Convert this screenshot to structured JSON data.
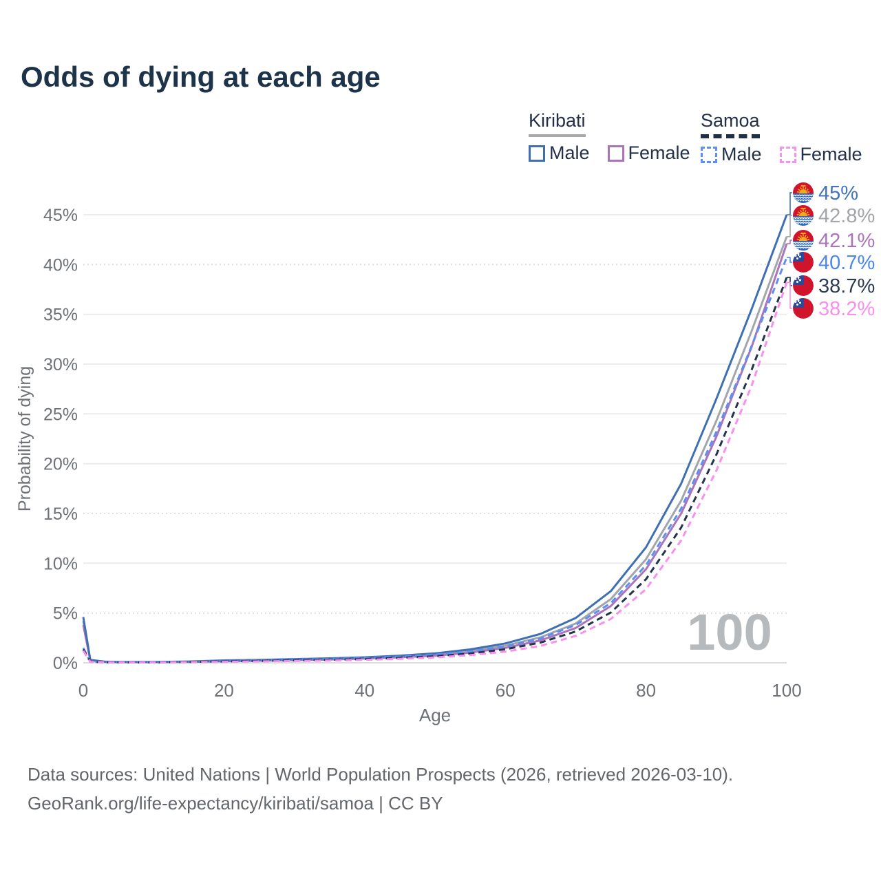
{
  "header": {
    "title": "Odds of dying at each age"
  },
  "legend": {
    "groups": [
      {
        "label": "Kiribati",
        "line_style": "solid",
        "underline_color": "#a9a9a9",
        "items": [
          {
            "label": "Male",
            "color": "#3f6fb3"
          },
          {
            "label": "Female",
            "color": "#ab74ba"
          }
        ]
      },
      {
        "label": "Samoa",
        "line_style": "dashed",
        "underline_color": "#1e2f47",
        "items": [
          {
            "label": "Male",
            "color": "#5b8ff2"
          },
          {
            "label": "Female",
            "color": "#f98fee"
          }
        ]
      }
    ]
  },
  "watermark": "100",
  "footer": {
    "line1": "Data sources: United Nations | World Population Prospects (2026, retrieved 2026-03-10).",
    "line2": "GeoRank.org/life-expectancy/kiribati/samoa | CC BY"
  },
  "chart_data": {
    "type": "line",
    "title": "Odds of dying at each age",
    "xlabel": "Age",
    "ylabel": "Probability of dying",
    "xlim": [
      0,
      100
    ],
    "ylim": [
      0,
      45
    ],
    "xticks": [
      0,
      20,
      40,
      60,
      80,
      100
    ],
    "yticks": [
      0,
      5,
      10,
      15,
      20,
      25,
      30,
      35,
      40,
      45
    ],
    "ytick_suffix": "%",
    "dotted_gridlines": [
      5,
      15,
      40
    ],
    "grid": true,
    "legend_position": "top-right",
    "axis_color": "#6e7276",
    "grid_color": "#ececec",
    "baseline_color": "#dcdcdc",
    "watermark_color": "#b7babd",
    "flag_colors": {
      "red": "#d0142c",
      "blue": "#2f66c4",
      "canton_blue": "#2a4b9b",
      "gold": "#f6a81c",
      "white": "#ffffff"
    },
    "series": [
      {
        "id": "kiribati-male",
        "name": "Kiribati Male",
        "country": "Kiribati",
        "sex": "Male",
        "line_style": "solid",
        "color": "#3f6fb3",
        "label_color": "#4273b8",
        "flag": "kiribati",
        "end_label": "45%",
        "end_value": 45,
        "points": [
          [
            0,
            4.6
          ],
          [
            1,
            0.3
          ],
          [
            3,
            0.12
          ],
          [
            5,
            0.09
          ],
          [
            10,
            0.08
          ],
          [
            15,
            0.13
          ],
          [
            20,
            0.24
          ],
          [
            25,
            0.3
          ],
          [
            30,
            0.37
          ],
          [
            35,
            0.45
          ],
          [
            40,
            0.55
          ],
          [
            45,
            0.72
          ],
          [
            50,
            0.95
          ],
          [
            55,
            1.35
          ],
          [
            60,
            1.95
          ],
          [
            65,
            2.9
          ],
          [
            70,
            4.5
          ],
          [
            75,
            7.2
          ],
          [
            80,
            11.6
          ],
          [
            85,
            18.0
          ],
          [
            90,
            26.5
          ],
          [
            95,
            35.5
          ],
          [
            100,
            45.0
          ]
        ]
      },
      {
        "id": "kiribati-both",
        "name": "Kiribati",
        "country": "Kiribati",
        "sex": "Both",
        "line_style": "solid",
        "color": "#a2a5a9",
        "label_color": "#a2a5a9",
        "flag": "kiribati",
        "end_label": "42.8%",
        "end_value": 42.8,
        "points": [
          [
            0,
            4.2
          ],
          [
            1,
            0.27
          ],
          [
            3,
            0.11
          ],
          [
            5,
            0.08
          ],
          [
            10,
            0.07
          ],
          [
            15,
            0.11
          ],
          [
            20,
            0.2
          ],
          [
            25,
            0.26
          ],
          [
            30,
            0.32
          ],
          [
            35,
            0.39
          ],
          [
            40,
            0.48
          ],
          [
            45,
            0.63
          ],
          [
            50,
            0.83
          ],
          [
            55,
            1.18
          ],
          [
            60,
            1.72
          ],
          [
            65,
            2.56
          ],
          [
            70,
            3.95
          ],
          [
            75,
            6.4
          ],
          [
            80,
            10.4
          ],
          [
            85,
            16.3
          ],
          [
            90,
            24.3
          ],
          [
            95,
            33.3
          ],
          [
            100,
            42.8
          ]
        ]
      },
      {
        "id": "kiribati-female",
        "name": "Kiribati Female",
        "country": "Kiribati",
        "sex": "Female",
        "line_style": "solid",
        "color": "#ab74ba",
        "label_color": "#ab74ba",
        "flag": "kiribati",
        "end_label": "42.1%",
        "end_value": 42.1,
        "points": [
          [
            0,
            3.8
          ],
          [
            1,
            0.24
          ],
          [
            3,
            0.1
          ],
          [
            5,
            0.07
          ],
          [
            10,
            0.06
          ],
          [
            15,
            0.09
          ],
          [
            20,
            0.16
          ],
          [
            25,
            0.21
          ],
          [
            30,
            0.27
          ],
          [
            35,
            0.33
          ],
          [
            40,
            0.42
          ],
          [
            45,
            0.55
          ],
          [
            50,
            0.72
          ],
          [
            55,
            1.02
          ],
          [
            60,
            1.5
          ],
          [
            65,
            2.25
          ],
          [
            70,
            3.5
          ],
          [
            75,
            5.7
          ],
          [
            80,
            9.4
          ],
          [
            85,
            15.0
          ],
          [
            90,
            22.7
          ],
          [
            95,
            31.7
          ],
          [
            100,
            42.1
          ]
        ]
      },
      {
        "id": "samoa-male",
        "name": "Samoa Male",
        "country": "Samoa",
        "sex": "Male",
        "line_style": "dashed",
        "color": "#5b8ff2",
        "label_color": "#4b86f0",
        "flag": "samoa",
        "end_label": "40.7%",
        "end_value": 40.7,
        "points": [
          [
            0,
            1.5
          ],
          [
            1,
            0.12
          ],
          [
            3,
            0.06
          ],
          [
            5,
            0.05
          ],
          [
            10,
            0.05
          ],
          [
            15,
            0.1
          ],
          [
            20,
            0.18
          ],
          [
            25,
            0.24
          ],
          [
            30,
            0.31
          ],
          [
            35,
            0.38
          ],
          [
            40,
            0.48
          ],
          [
            45,
            0.62
          ],
          [
            50,
            0.82
          ],
          [
            55,
            1.15
          ],
          [
            60,
            1.65
          ],
          [
            65,
            2.45
          ],
          [
            70,
            3.8
          ],
          [
            75,
            6.0
          ],
          [
            80,
            9.8
          ],
          [
            85,
            15.5
          ],
          [
            90,
            23.2
          ],
          [
            95,
            31.8
          ],
          [
            100,
            40.7
          ]
        ]
      },
      {
        "id": "samoa-both",
        "name": "Samoa",
        "country": "Samoa",
        "sex": "Both",
        "line_style": "dashed",
        "color": "#22334a",
        "label_color": "#2b3c50",
        "flag": "samoa",
        "end_label": "38.7%",
        "end_value": 38.7,
        "points": [
          [
            0,
            1.35
          ],
          [
            1,
            0.11
          ],
          [
            3,
            0.05
          ],
          [
            5,
            0.045
          ],
          [
            10,
            0.04
          ],
          [
            15,
            0.08
          ],
          [
            20,
            0.14
          ],
          [
            25,
            0.19
          ],
          [
            30,
            0.24
          ],
          [
            35,
            0.3
          ],
          [
            40,
            0.38
          ],
          [
            45,
            0.5
          ],
          [
            50,
            0.66
          ],
          [
            55,
            0.93
          ],
          [
            60,
            1.36
          ],
          [
            65,
            2.03
          ],
          [
            70,
            3.15
          ],
          [
            75,
            5.05
          ],
          [
            80,
            8.4
          ],
          [
            85,
            13.6
          ],
          [
            90,
            20.9
          ],
          [
            95,
            29.4
          ],
          [
            100,
            38.7
          ]
        ]
      },
      {
        "id": "samoa-female",
        "name": "Samoa Female",
        "country": "Samoa",
        "sex": "Female",
        "line_style": "dashed",
        "color": "#f98fee",
        "label_color": "#f98fee",
        "flag": "samoa",
        "end_label": "38.2%",
        "end_value": 38.2,
        "points": [
          [
            0,
            1.2
          ],
          [
            1,
            0.1
          ],
          [
            3,
            0.045
          ],
          [
            5,
            0.04
          ],
          [
            10,
            0.035
          ],
          [
            15,
            0.06
          ],
          [
            20,
            0.1
          ],
          [
            25,
            0.14
          ],
          [
            30,
            0.18
          ],
          [
            35,
            0.23
          ],
          [
            40,
            0.3
          ],
          [
            45,
            0.4
          ],
          [
            50,
            0.54
          ],
          [
            55,
            0.77
          ],
          [
            60,
            1.12
          ],
          [
            65,
            1.7
          ],
          [
            70,
            2.7
          ],
          [
            75,
            4.4
          ],
          [
            80,
            7.4
          ],
          [
            85,
            12.3
          ],
          [
            90,
            19.3
          ],
          [
            95,
            27.8
          ],
          [
            100,
            38.2
          ]
        ]
      }
    ]
  }
}
